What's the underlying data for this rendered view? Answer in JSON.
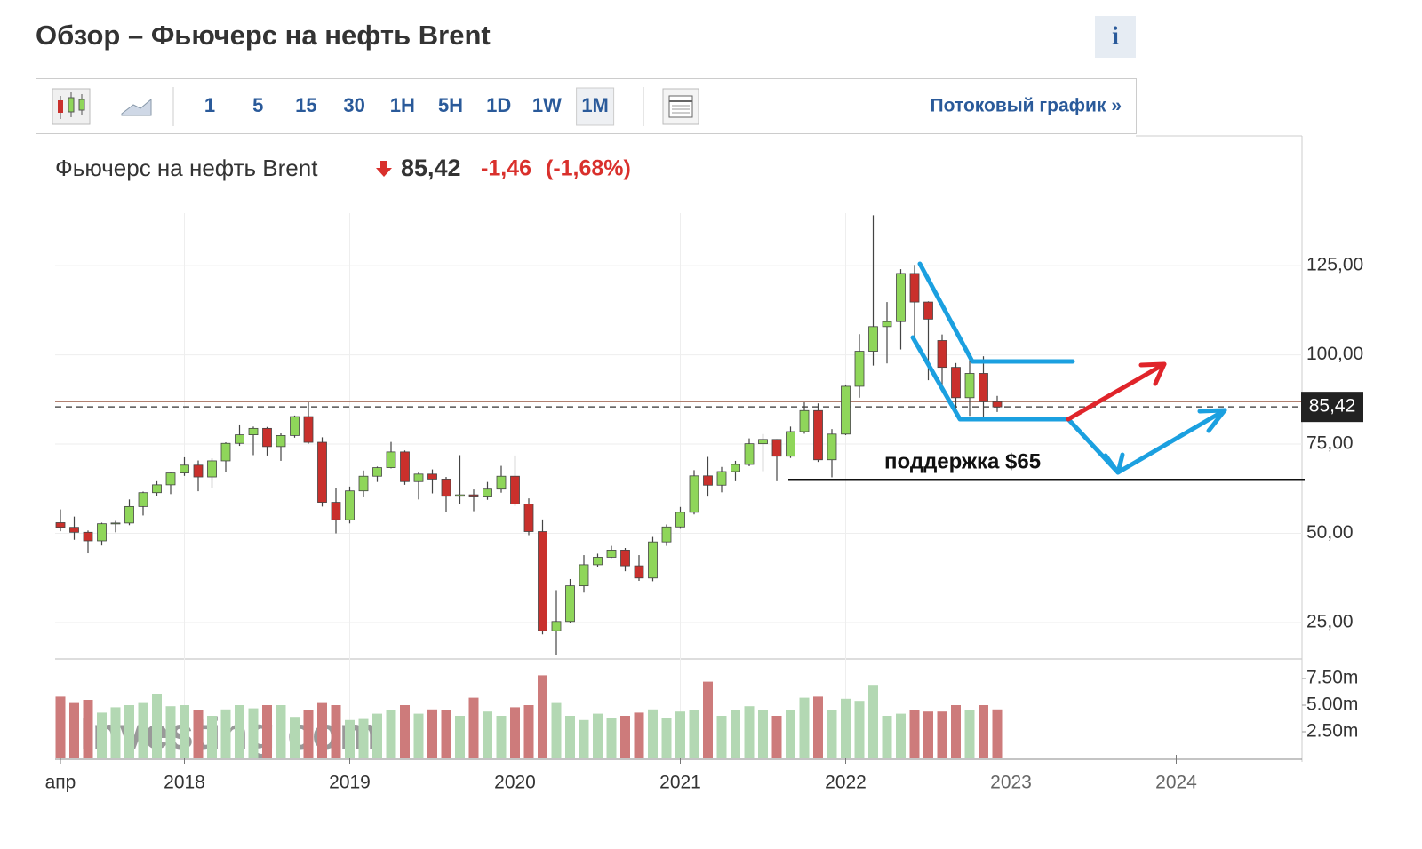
{
  "page_title": "Обзор – Фьючерс на нефть Brent",
  "info_button": "i",
  "toolbar": {
    "intervals": [
      "1",
      "5",
      "15",
      "30",
      "1H",
      "5H",
      "1D",
      "1W",
      "1M"
    ],
    "active": "1M",
    "stream_link": "Потоковый график »"
  },
  "chart_data": {
    "type": "candlestick",
    "instrument": "Фьючерс на нефть Brent",
    "last_price": 85.42,
    "last_price_label": "85,42",
    "change_label": "-1,46",
    "change_pct_label": "(-1,68%)",
    "prev_close": 86.88,
    "x": [
      "2017-04",
      "2017-05",
      "2017-06",
      "2017-07",
      "2017-08",
      "2017-09",
      "2017-10",
      "2017-11",
      "2017-12",
      "2018-01",
      "2018-02",
      "2018-03",
      "2018-04",
      "2018-05",
      "2018-06",
      "2018-07",
      "2018-08",
      "2018-09",
      "2018-10",
      "2018-11",
      "2018-12",
      "2019-01",
      "2019-02",
      "2019-03",
      "2019-04",
      "2019-05",
      "2019-06",
      "2019-07",
      "2019-08",
      "2019-09",
      "2019-10",
      "2019-11",
      "2019-12",
      "2020-01",
      "2020-02",
      "2020-03",
      "2020-04",
      "2020-05",
      "2020-06",
      "2020-07",
      "2020-08",
      "2020-09",
      "2020-10",
      "2020-11",
      "2020-12",
      "2021-01",
      "2021-02",
      "2021-03",
      "2021-04",
      "2021-05",
      "2021-06",
      "2021-07",
      "2021-08",
      "2021-09",
      "2021-10",
      "2021-11",
      "2021-12",
      "2022-01",
      "2022-02",
      "2022-03",
      "2022-04",
      "2022-05",
      "2022-06",
      "2022-07",
      "2022-08",
      "2022-09",
      "2022-10",
      "2022-11",
      "2022-12"
    ],
    "open": [
      53.0,
      51.7,
      50.3,
      47.9,
      52.7,
      52.9,
      57.5,
      61.4,
      63.6,
      66.9,
      69.1,
      65.8,
      70.3,
      75.2,
      77.6,
      79.4,
      74.3,
      77.4,
      82.7,
      75.5,
      58.7,
      53.8,
      61.9,
      66.0,
      68.4,
      72.8,
      64.5,
      66.6,
      65.2,
      60.4,
      60.8,
      60.2,
      62.4,
      66.0,
      58.2,
      50.5,
      22.7,
      25.3,
      35.3,
      41.2,
      43.3,
      45.3,
      40.9,
      37.5,
      47.6,
      51.8,
      55.9,
      66.1,
      63.5,
      67.3,
      69.3,
      75.1,
      76.3,
      71.6,
      78.5,
      84.4,
      70.6,
      77.8,
      91.2,
      101.0,
      107.9,
      109.3,
      122.8,
      114.8,
      104.0,
      96.5,
      88.0,
      94.8,
      86.88
    ],
    "high": [
      56.7,
      54.7,
      50.8,
      53.0,
      53.5,
      59.5,
      61.7,
      64.6,
      67.0,
      71.3,
      70.4,
      71.0,
      75.5,
      80.5,
      79.9,
      79.8,
      78.0,
      83.0,
      86.7,
      76.9,
      62.6,
      63.1,
      67.6,
      68.7,
      75.6,
      73.2,
      67.1,
      67.9,
      65.8,
      71.9,
      62.3,
      64.4,
      68.9,
      71.8,
      59.8,
      53.9,
      34.1,
      37.2,
      43.9,
      44.3,
      46.5,
      45.9,
      43.9,
      49.0,
      52.5,
      57.4,
      67.7,
      71.4,
      68.6,
      70.3,
      76.6,
      77.8,
      76.4,
      79.9,
      86.7,
      86.4,
      79.2,
      91.7,
      105.8,
      139.1,
      114.8,
      124.0,
      125.2,
      115.0,
      105.7,
      97.7,
      98.8,
      99.6,
      88.5
    ],
    "low": [
      50.6,
      48.2,
      44.4,
      46.6,
      50.3,
      52.3,
      55.0,
      60.4,
      61.0,
      66.1,
      61.8,
      62.6,
      67.1,
      74.5,
      71.9,
      71.8,
      70.3,
      76.8,
      75.1,
      57.5,
      50.0,
      52.8,
      60.1,
      64.4,
      68.2,
      63.6,
      59.5,
      61.2,
      55.9,
      58.1,
      56.2,
      59.4,
      61.4,
      57.7,
      49.5,
      21.7,
      15.98,
      25.0,
      33.4,
      40.5,
      43.1,
      39.4,
      36.7,
      36.6,
      46.5,
      51.3,
      55.3,
      60.3,
      61.5,
      64.6,
      68.8,
      67.4,
      64.6,
      71.1,
      77.9,
      70.0,
      65.7,
      77.5,
      88.0,
      97.0,
      97.6,
      101.5,
      103.8,
      92.9,
      91.5,
      83.7,
      82.9,
      81.4,
      84.0
    ],
    "close": [
      51.7,
      50.3,
      47.9,
      52.7,
      52.9,
      57.5,
      61.4,
      63.6,
      66.9,
      69.1,
      65.8,
      70.3,
      75.2,
      77.6,
      79.4,
      74.3,
      77.4,
      82.7,
      75.5,
      58.7,
      53.8,
      61.9,
      66.0,
      68.4,
      72.8,
      64.5,
      66.6,
      65.2,
      60.4,
      60.8,
      60.2,
      62.4,
      66.0,
      58.2,
      50.5,
      22.7,
      25.3,
      35.3,
      41.2,
      43.3,
      45.3,
      40.9,
      37.5,
      47.6,
      51.8,
      55.9,
      66.1,
      63.5,
      67.3,
      69.3,
      75.1,
      76.3,
      71.6,
      78.5,
      84.4,
      70.6,
      77.8,
      91.2,
      101.0,
      107.9,
      109.3,
      122.8,
      114.8,
      110.0,
      96.5,
      88.0,
      94.8,
      86.88,
      85.42
    ],
    "volume": [
      5.8,
      5.2,
      5.5,
      4.3,
      4.8,
      5.0,
      5.2,
      6.0,
      4.9,
      5.0,
      4.5,
      4.0,
      4.6,
      5.0,
      4.7,
      5.0,
      5.0,
      3.9,
      4.5,
      5.2,
      5.0,
      3.6,
      3.7,
      4.2,
      4.5,
      5.0,
      4.2,
      4.6,
      4.5,
      4.0,
      5.7,
      4.4,
      4.0,
      4.8,
      5.0,
      7.8,
      5.2,
      4.0,
      3.6,
      4.2,
      3.8,
      4.0,
      4.3,
      4.6,
      3.8,
      4.4,
      4.5,
      7.2,
      4.0,
      4.5,
      4.9,
      4.5,
      4.0,
      4.5,
      5.7,
      5.8,
      4.5,
      5.6,
      5.4,
      6.9,
      4.0,
      4.2,
      4.5,
      4.4,
      4.4,
      5.0,
      4.5,
      5.0,
      4.6
    ],
    "up_color": "#8fd65a",
    "down_color": "#c9302c",
    "volume_up_color": "#b3d8b3",
    "volume_down_color": "#cd7b7b",
    "xlim": [
      "2017-04",
      "2024-10"
    ],
    "xticks": [
      {
        "value": "2017-04",
        "label": "апр"
      },
      {
        "value": "2018-01",
        "label": "2018"
      },
      {
        "value": "2019-01",
        "label": "2019"
      },
      {
        "value": "2020-01",
        "label": "2020"
      },
      {
        "value": "2021-01",
        "label": "2021"
      },
      {
        "value": "2022-01",
        "label": "2022"
      },
      {
        "value": "2023-01",
        "label": "2023"
      },
      {
        "value": "2024-01",
        "label": "2024"
      }
    ],
    "ylim": [
      15.3,
      139.7
    ],
    "yticks": [
      {
        "value": 25,
        "label": "25,00"
      },
      {
        "value": 50,
        "label": "50,00"
      },
      {
        "value": 75,
        "label": "75,00"
      },
      {
        "value": 100,
        "label": "100,00"
      },
      {
        "value": 125,
        "label": "125,00"
      }
    ],
    "volume_ylim": [
      0,
      9
    ],
    "volume_ticks": [
      {
        "value": 2.5,
        "label": "2.50m"
      },
      {
        "value": 5,
        "label": "5.00m"
      },
      {
        "value": 7.5,
        "label": "7.50m"
      }
    ],
    "grid": true,
    "support_level": 65,
    "support_label": "поддержка $65",
    "watermark": "Investing.com"
  }
}
